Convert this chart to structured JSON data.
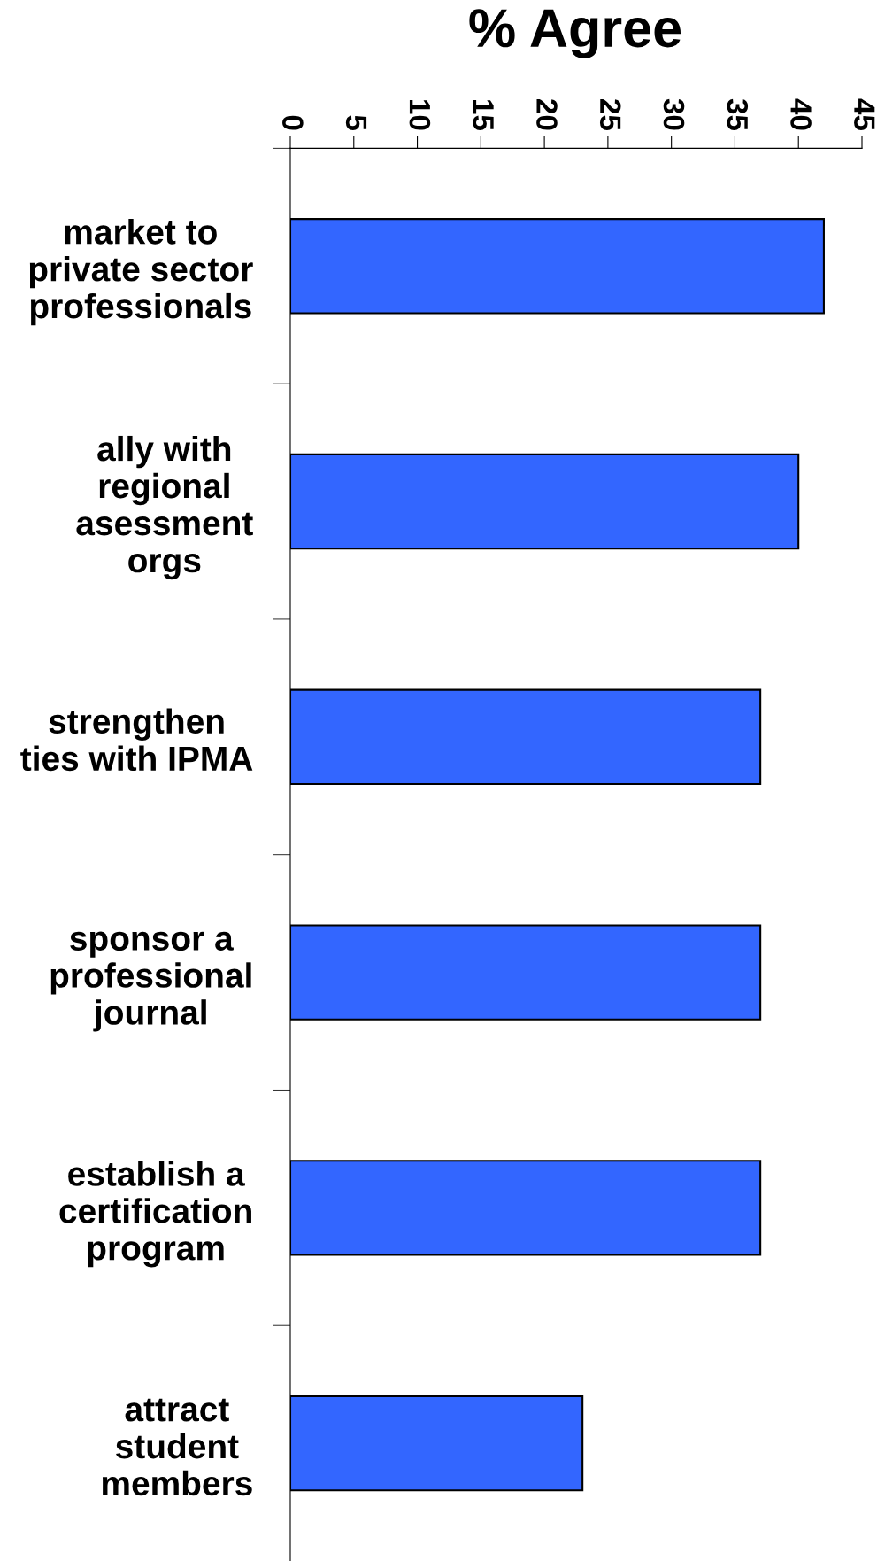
{
  "chart_data": {
    "type": "bar",
    "orientation": "horizontal",
    "title": "% Agree",
    "categories": [
      "market to\nprivate sector\nprofessionals",
      "ally with\nregional\nasessment\norgs",
      "strengthen\nties with IPMA",
      "sponsor a\nprofessional\njournal",
      "establish a\ncertification\nprogram",
      "attract\nstudent\nmembers"
    ],
    "values": [
      42,
      40,
      37,
      37,
      37,
      23
    ],
    "color": "#3366ff",
    "xlim": [
      0,
      45
    ],
    "xticks": [
      0,
      5,
      10,
      15,
      20,
      25,
      30,
      35,
      40,
      45
    ],
    "grid": false,
    "legend": false
  }
}
